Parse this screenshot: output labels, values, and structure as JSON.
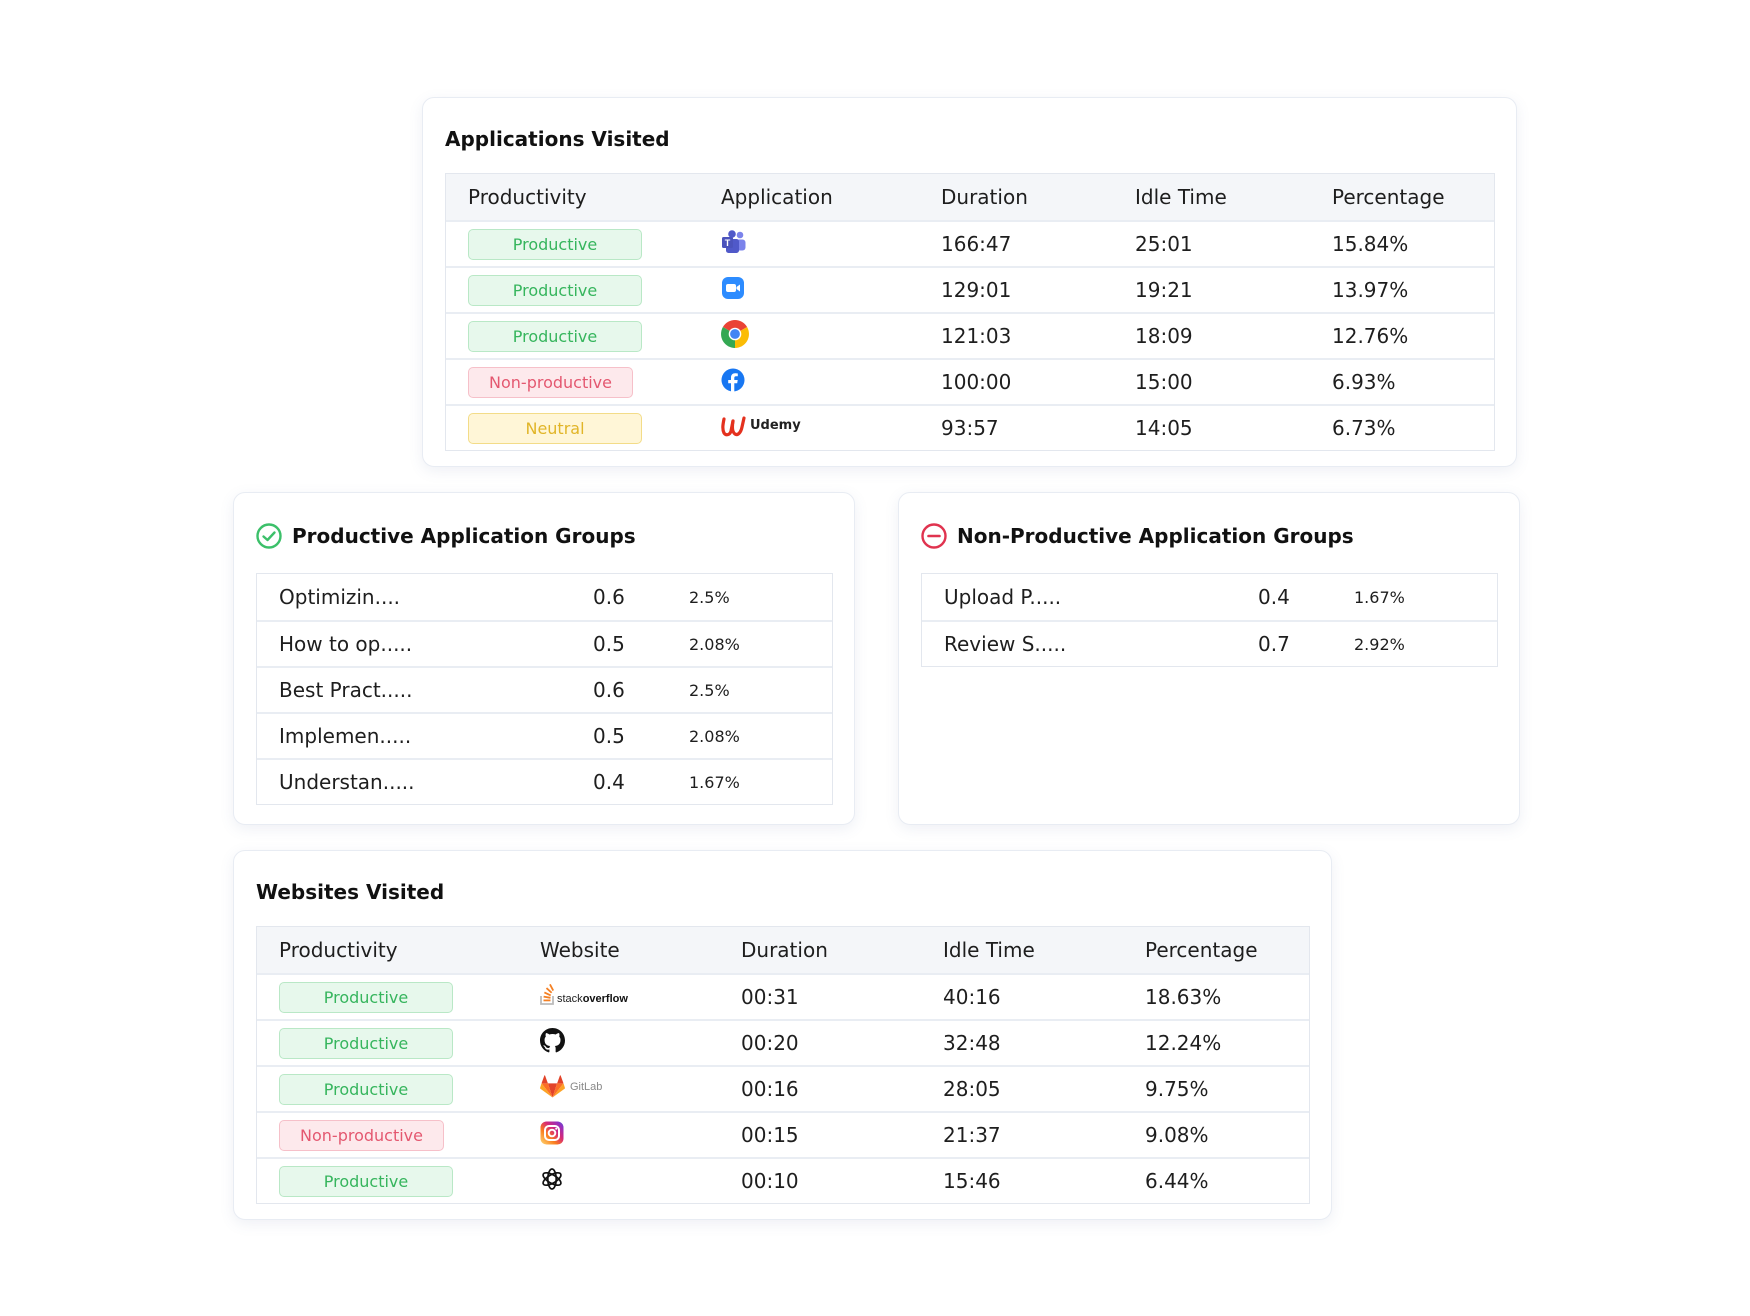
{
  "applications": {
    "title": "Applications Visited",
    "headers": [
      "Productivity",
      "Application",
      "Duration",
      "Idle Time",
      "Percentage"
    ],
    "rows": [
      {
        "productivity": "Productive",
        "status": "productive",
        "app_icon": "teams-icon",
        "duration": "166:47",
        "idle": "25:01",
        "percentage": "15.84%"
      },
      {
        "productivity": "Productive",
        "status": "productive",
        "app_icon": "zoom-icon",
        "duration": "129:01",
        "idle": "19:21",
        "percentage": "13.97%"
      },
      {
        "productivity": "Productive",
        "status": "productive",
        "app_icon": "chrome-icon",
        "duration": "121:03",
        "idle": "18:09",
        "percentage": "12.76%"
      },
      {
        "productivity": "Non-productive",
        "status": "nonproductive",
        "app_icon": "facebook-icon",
        "duration": "100:00",
        "idle": "15:00",
        "percentage": "6.93%"
      },
      {
        "productivity": "Neutral",
        "status": "neutral",
        "app_icon": "udemy-icon",
        "app_label": "Udemy",
        "duration": "93:57",
        "idle": "14:05",
        "percentage": "6.73%"
      }
    ]
  },
  "productive_groups": {
    "title": "Productive Application Groups",
    "icon": "check-circle-icon",
    "rows": [
      {
        "name": "Optimizin....",
        "value": "0.6",
        "percent": "2.5%"
      },
      {
        "name": "How to op.....",
        "value": "0.5",
        "percent": "2.08%"
      },
      {
        "name": "Best Pract.....",
        "value": "0.6",
        "percent": "2.5%"
      },
      {
        "name": "Implemen.....",
        "value": "0.5",
        "percent": "2.08%"
      },
      {
        "name": "Understan.....",
        "value": "0.4",
        "percent": "1.67%"
      }
    ]
  },
  "nonproductive_groups": {
    "title": "Non-Productive Application Groups",
    "icon": "minus-circle-icon",
    "rows": [
      {
        "name": "Upload P.....",
        "value": "0.4",
        "percent": "1.67%"
      },
      {
        "name": "Review S.....",
        "value": "0.7",
        "percent": "2.92%"
      }
    ]
  },
  "websites": {
    "title": "Websites Visited",
    "headers": [
      "Productivity",
      "Website",
      "Duration",
      "Idle Time",
      "Percentage"
    ],
    "rows": [
      {
        "productivity": "Productive",
        "status": "productive",
        "site_icon": "stackoverflow-icon",
        "site_label_a": "stack",
        "site_label_b": "overflow",
        "duration": "00:31",
        "idle": "40:16",
        "percentage": "18.63%"
      },
      {
        "productivity": "Productive",
        "status": "productive",
        "site_icon": "github-icon",
        "duration": "00:20",
        "idle": "32:48",
        "percentage": "12.24%"
      },
      {
        "productivity": "Productive",
        "status": "productive",
        "site_icon": "gitlab-icon",
        "site_label": "GitLab",
        "duration": "00:16",
        "idle": "28:05",
        "percentage": "9.75%"
      },
      {
        "productivity": "Non-productive",
        "status": "nonproductive",
        "site_icon": "instagram-icon",
        "duration": "00:15",
        "idle": "21:37",
        "percentage": "9.08%"
      },
      {
        "productivity": "Productive",
        "status": "productive",
        "site_icon": "openai-icon",
        "duration": "00:10",
        "idle": "15:46",
        "percentage": "6.44%"
      }
    ]
  },
  "colors": {
    "productive": "#36b55d",
    "nonproductive": "#e45870",
    "neutral": "#e1b528",
    "check_icon": "#3cc06a",
    "minus_icon": "#e0334f"
  }
}
